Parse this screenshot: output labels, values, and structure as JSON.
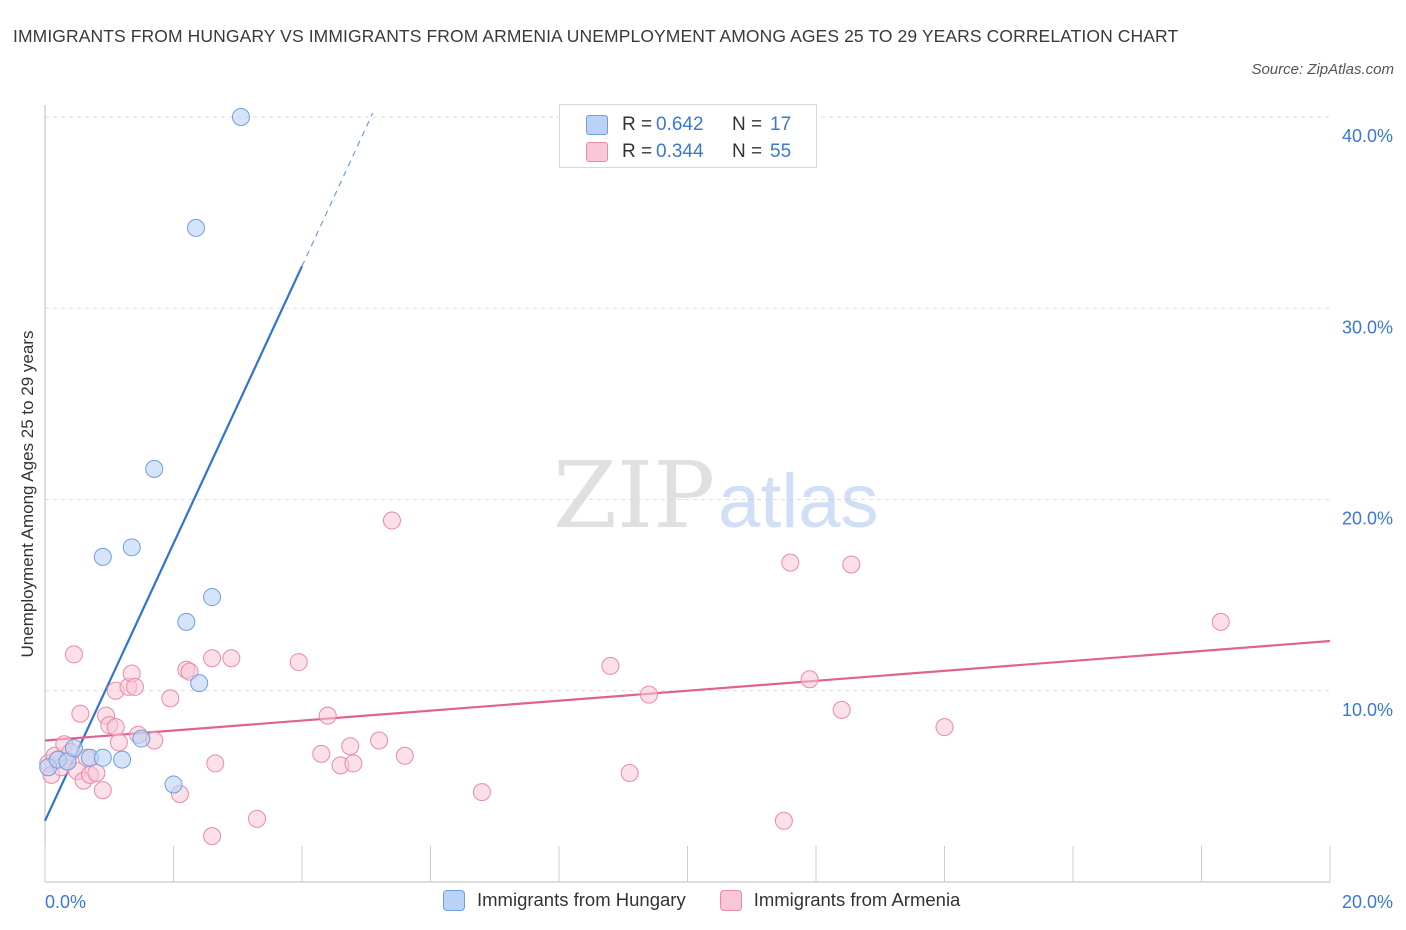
{
  "title": "IMMIGRANTS FROM HUNGARY VS IMMIGRANTS FROM ARMENIA UNEMPLOYMENT AMONG AGES 25 TO 29 YEARS CORRELATION CHART",
  "source": "Source: ZipAtlas.com",
  "watermark": {
    "zip": "ZIP",
    "atlas": "atlas"
  },
  "legend": {
    "rows": [
      {
        "r_label": "R =",
        "r_value": "0.642",
        "n_label": "N =",
        "n_value": "17"
      },
      {
        "r_label": "R =",
        "r_value": "0.344",
        "n_label": "N =",
        "n_value": "55"
      }
    ]
  },
  "colors": {
    "hungary_fill": "#b9d2f5",
    "hungary_stroke": "#6e9fe0",
    "hungary_line": "#2f74d0",
    "armenia_fill": "#f8c6d5",
    "armenia_stroke": "#ea8aa8",
    "armenia_line": "#e0638e",
    "tick_label": "#3a78d4",
    "grid": "#dddddd"
  },
  "chart_data": {
    "type": "scatter",
    "title": "IMMIGRANTS FROM HUNGARY VS IMMIGRANTS FROM ARMENIA UNEMPLOYMENT AMONG AGES 25 TO 29 YEARS CORRELATION CHART",
    "xlabel": "",
    "ylabel": "Unemployment Among Ages 25 to 29 years",
    "xlim": [
      0,
      20
    ],
    "ylim": [
      0,
      40
    ],
    "x_tick_labels": [
      "0.0%",
      "20.0%"
    ],
    "y_ticks": [
      10,
      20,
      30,
      40
    ],
    "y_tick_labels": [
      "10.0%",
      "20.0%",
      "30.0%",
      "40.0%"
    ],
    "series": [
      {
        "name": "Immigrants from Hungary",
        "R": 0.642,
        "N": 17,
        "trend": {
          "x0": 0.0,
          "y0": 3.2,
          "x1": 4.0,
          "y1": 32.2,
          "dash_x1": 5.1,
          "dash_y1": 40.2
        },
        "points": [
          [
            0.05,
            6.0
          ],
          [
            0.2,
            6.4
          ],
          [
            0.35,
            6.3
          ],
          [
            0.45,
            7.0
          ],
          [
            0.7,
            6.5
          ],
          [
            0.9,
            6.5
          ],
          [
            1.2,
            6.4
          ],
          [
            1.5,
            7.5
          ],
          [
            0.9,
            17.0
          ],
          [
            1.35,
            17.5
          ],
          [
            1.7,
            21.6
          ],
          [
            2.2,
            13.6
          ],
          [
            2.4,
            10.4
          ],
          [
            2.6,
            14.9
          ],
          [
            2.0,
            5.1
          ],
          [
            2.35,
            34.2
          ],
          [
            3.05,
            40.0
          ]
        ]
      },
      {
        "name": "Immigrants from Armenia",
        "R": 0.344,
        "N": 55,
        "trend": {
          "x0": 0.0,
          "y0": 7.4,
          "x1": 20.0,
          "y1": 12.6
        },
        "points": [
          [
            0.05,
            6.2
          ],
          [
            0.1,
            5.6
          ],
          [
            0.15,
            6.6
          ],
          [
            0.25,
            6.0
          ],
          [
            0.3,
            7.2
          ],
          [
            0.4,
            6.8
          ],
          [
            0.45,
            11.9
          ],
          [
            0.5,
            5.8
          ],
          [
            0.55,
            8.8
          ],
          [
            0.6,
            5.3
          ],
          [
            0.7,
            5.6
          ],
          [
            0.8,
            5.7
          ],
          [
            0.9,
            4.8
          ],
          [
            0.95,
            8.7
          ],
          [
            1.0,
            8.2
          ],
          [
            1.1,
            8.1
          ],
          [
            1.15,
            7.3
          ],
          [
            1.1,
            10.0
          ],
          [
            1.3,
            10.2
          ],
          [
            1.35,
            10.9
          ],
          [
            1.4,
            10.2
          ],
          [
            1.45,
            7.7
          ],
          [
            1.7,
            7.4
          ],
          [
            1.95,
            9.6
          ],
          [
            2.1,
            4.6
          ],
          [
            2.2,
            11.1
          ],
          [
            2.25,
            11.0
          ],
          [
            2.6,
            11.7
          ],
          [
            2.65,
            6.2
          ],
          [
            2.9,
            11.7
          ],
          [
            2.6,
            2.4
          ],
          [
            3.3,
            3.3
          ],
          [
            3.95,
            11.5
          ],
          [
            4.3,
            6.7
          ],
          [
            4.4,
            8.7
          ],
          [
            4.6,
            6.1
          ],
          [
            4.75,
            7.1
          ],
          [
            4.8,
            6.2
          ],
          [
            5.2,
            7.4
          ],
          [
            5.4,
            18.9
          ],
          [
            5.6,
            6.6
          ],
          [
            6.8,
            4.7
          ],
          [
            8.8,
            11.3
          ],
          [
            9.1,
            5.7
          ],
          [
            9.4,
            9.8
          ],
          [
            11.5,
            3.2
          ],
          [
            11.6,
            16.7
          ],
          [
            11.9,
            10.6
          ],
          [
            12.4,
            9.0
          ],
          [
            12.55,
            16.6
          ],
          [
            14.0,
            8.1
          ],
          [
            18.3,
            13.6
          ],
          [
            0.35,
            6.3
          ],
          [
            0.65,
            6.5
          ],
          [
            0.2,
            6.4
          ]
        ]
      }
    ]
  }
}
